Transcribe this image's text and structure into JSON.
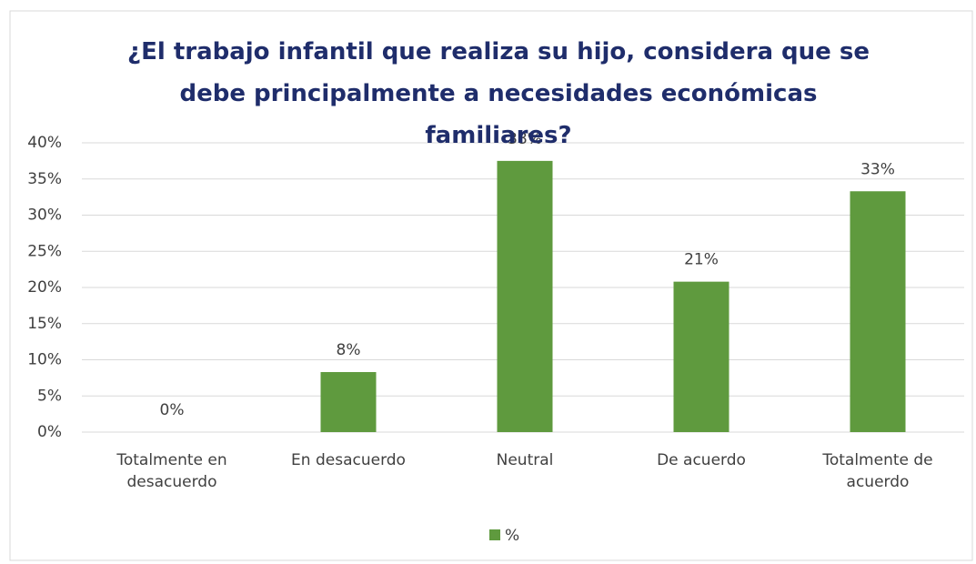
{
  "chart_data": {
    "type": "bar",
    "title": "¿El trabajo infantil que realiza su hijo, considera que se debe principalmente a necesidades económicas familiares?",
    "categories": [
      "Totalmente en desacuerdo",
      "En desacuerdo",
      "Neutral",
      "De acuerdo",
      "Totalmente de acuerdo"
    ],
    "series": [
      {
        "name": "%",
        "color": "#5f9a3e",
        "values": [
          0,
          8.3,
          37.5,
          20.8,
          33.3
        ],
        "value_labels": [
          "0%",
          "8%",
          "38%",
          "21%",
          "33%"
        ]
      }
    ],
    "ylim": [
      0,
      40
    ],
    "yticks": [
      {
        "value": 0,
        "label": "0%"
      },
      {
        "value": 5,
        "label": "5%"
      },
      {
        "value": 10,
        "label": "10%"
      },
      {
        "value": 15,
        "label": "15%"
      },
      {
        "value": 20,
        "label": "20%"
      },
      {
        "value": 25,
        "label": "25%"
      },
      {
        "value": 30,
        "label": "30%"
      },
      {
        "value": 35,
        "label": "35%"
      },
      {
        "value": 40,
        "label": "40%"
      }
    ],
    "grid": true,
    "legend": "bottom"
  }
}
